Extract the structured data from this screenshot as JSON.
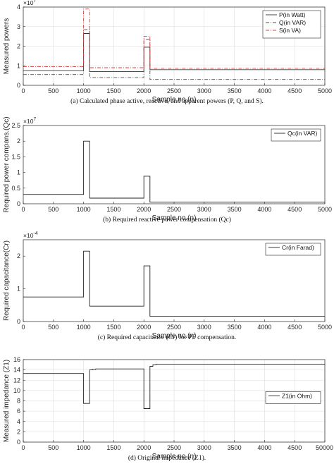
{
  "chart_data": [
    {
      "type": "line",
      "caption": "(a) Calculated phase active, reactive, and apparent powers (P, Q, and S).",
      "xlabel": "Sample no.(n)",
      "ylabel": "Measured powers",
      "exponent": "×10^7",
      "xlim": [
        0,
        5000
      ],
      "ylim": [
        0,
        4
      ],
      "xticks": [
        "0",
        "500",
        "1000",
        "1500",
        "2000",
        "2500",
        "3000",
        "3500",
        "4000",
        "4500",
        "5000"
      ],
      "yticks": [
        "0",
        "1",
        "2",
        "3",
        "4"
      ],
      "grid": true,
      "legend": "top-right",
      "series": [
        {
          "name": "P(in Watt)",
          "color": "#333333",
          "dash": "solid",
          "x": [
            0,
            1000,
            1000,
            1100,
            1100,
            2000,
            2000,
            2100,
            2100,
            5000
          ],
          "y": [
            0.75,
            0.75,
            2.65,
            2.65,
            0.7,
            0.7,
            1.95,
            1.95,
            0.8,
            0.8
          ]
        },
        {
          "name": "Q(in VAR)",
          "color": "#4d4d4d",
          "dash": "dashdot",
          "x": [
            0,
            1000,
            1000,
            1100,
            1100,
            2000,
            2000,
            2100,
            2100,
            5000
          ],
          "y": [
            0.55,
            0.55,
            2.85,
            2.85,
            0.4,
            0.4,
            2.35,
            2.35,
            0.3,
            0.3
          ]
        },
        {
          "name": "S(in VA)",
          "color": "#e03c3c",
          "dash": "dashdot",
          "x": [
            0,
            1000,
            1000,
            1100,
            1100,
            2000,
            2000,
            2100,
            2100,
            5000
          ],
          "y": [
            0.95,
            0.95,
            3.9,
            3.9,
            0.9,
            0.9,
            2.5,
            2.5,
            0.87,
            0.87
          ]
        }
      ]
    },
    {
      "type": "line",
      "caption": "(b) Required reactive power compensation (Qc)",
      "xlabel": "Sample no.(n)",
      "ylabel": "Required power compans.(Qc)",
      "exponent": "×10^7",
      "xlim": [
        0,
        5000
      ],
      "ylim": [
        0,
        2.5
      ],
      "xticks": [
        "0",
        "500",
        "1000",
        "1500",
        "2000",
        "2500",
        "3000",
        "3500",
        "4000",
        "4500",
        "5000"
      ],
      "yticks": [
        "0",
        "0.5",
        "1",
        "1.5",
        "2",
        "2.5"
      ],
      "ytick_values": [
        0,
        0.5,
        1,
        1.5,
        2,
        2.5
      ],
      "grid": false,
      "legend": "top-right",
      "series": [
        {
          "name": "Qc(in VAR)",
          "color": "#222222",
          "dash": "solid",
          "x": [
            0,
            1000,
            1000,
            1100,
            1100,
            2000,
            2000,
            2100,
            2100,
            5000
          ],
          "y": [
            0.3,
            0.3,
            2.0,
            2.0,
            0.18,
            0.18,
            0.88,
            0.88,
            0.05,
            0.05
          ]
        }
      ]
    },
    {
      "type": "line",
      "caption": "(c) Required capacitance (Cr) for PF compensation.",
      "xlabel": "Sample no.(n)",
      "ylabel": "Required capacitance(Cr)",
      "exponent": "×10^-4",
      "xlim": [
        0,
        5000
      ],
      "ylim": [
        0,
        2.5
      ],
      "xticks": [
        "0",
        "500",
        "1000",
        "1500",
        "2000",
        "2500",
        "3000",
        "3500",
        "4000",
        "4500",
        "5000"
      ],
      "yticks": [
        "0",
        "1",
        "2"
      ],
      "ytick_values": [
        0,
        1,
        2
      ],
      "grid": false,
      "legend": "top-right",
      "series": [
        {
          "name": "Cr(in Farad)",
          "color": "#222222",
          "dash": "solid",
          "x": [
            0,
            1000,
            1000,
            1100,
            1100,
            2000,
            2000,
            2100,
            2100,
            5000
          ],
          "y": [
            0.75,
            0.75,
            2.15,
            2.15,
            0.47,
            0.47,
            1.7,
            1.7,
            0.16,
            0.16
          ]
        }
      ]
    },
    {
      "type": "line",
      "caption": "(d) Original impedance (Z1).",
      "xlabel": "Sample no.(n)",
      "ylabel": "Measured impedance (Z1)",
      "exponent": "",
      "xlim": [
        0,
        5000
      ],
      "ylim": [
        0,
        16
      ],
      "xticks": [
        "0",
        "500",
        "1000",
        "1500",
        "2000",
        "2500",
        "3000",
        "3500",
        "4000",
        "4500",
        "5000"
      ],
      "xticks_last_label": "50000",
      "yticks": [
        "0",
        "2",
        "4",
        "6",
        "8",
        "10",
        "12",
        "14",
        "16"
      ],
      "ytick_values": [
        0,
        2,
        4,
        6,
        8,
        10,
        12,
        14,
        16
      ],
      "grid": true,
      "legend": "middle-right",
      "series": [
        {
          "name": "Z1(in Ohm)",
          "color": "#222222",
          "dash": "solid",
          "x": [
            0,
            1000,
            1000,
            1100,
            1100,
            1150,
            1150,
            1200,
            1200,
            2000,
            2000,
            2100,
            2100,
            2150,
            2150,
            2200,
            2200,
            5000
          ],
          "y": [
            13.3,
            13.3,
            7.5,
            7.5,
            14.0,
            14.0,
            14.1,
            14.1,
            14.2,
            14.2,
            6.5,
            6.5,
            14.7,
            14.7,
            15.0,
            15.0,
            15.1,
            15.1
          ]
        }
      ]
    }
  ]
}
